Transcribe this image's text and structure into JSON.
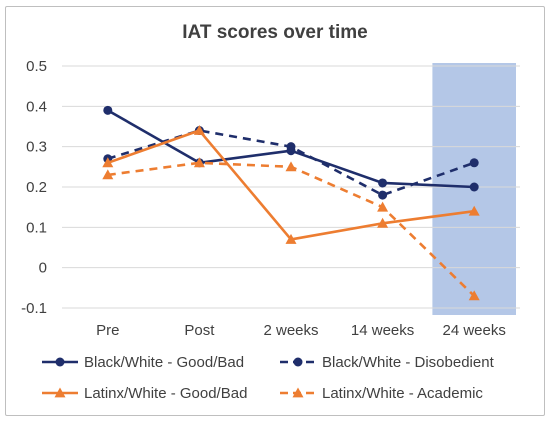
{
  "chart_data": {
    "type": "line",
    "title": "IAT scores over time",
    "categories": [
      "Pre",
      "Post",
      "2 weeks",
      "14 weeks",
      "24 weeks"
    ],
    "ylim": [
      -0.1,
      0.5
    ],
    "yticks": [
      "0.5",
      "0.4",
      "0.3",
      "0.2",
      "0.1",
      "0",
      "-0.1"
    ],
    "grid": true,
    "legend_position": "bottom",
    "highlight_category": "24 weeks",
    "highlight_color": "#b4c7e7",
    "series": [
      {
        "name": "Black/White - Good/Bad",
        "values": [
          0.39,
          0.26,
          0.29,
          0.21,
          0.2
        ],
        "color": "#1f2e6b",
        "dash": false,
        "marker": "circle"
      },
      {
        "name": "Black/White - Disobedient",
        "values": [
          0.27,
          0.34,
          0.3,
          0.18,
          0.26
        ],
        "color": "#1f2e6b",
        "dash": true,
        "marker": "circle"
      },
      {
        "name": "Latinx/White - Good/Bad",
        "values": [
          0.26,
          0.34,
          0.07,
          0.11,
          0.14
        ],
        "color": "#ed7d31",
        "dash": false,
        "marker": "triangle"
      },
      {
        "name": "Latinx/White - Academic",
        "values": [
          0.23,
          0.26,
          0.25,
          0.15,
          -0.07
        ],
        "color": "#ed7d31",
        "dash": true,
        "marker": "triangle"
      }
    ]
  }
}
